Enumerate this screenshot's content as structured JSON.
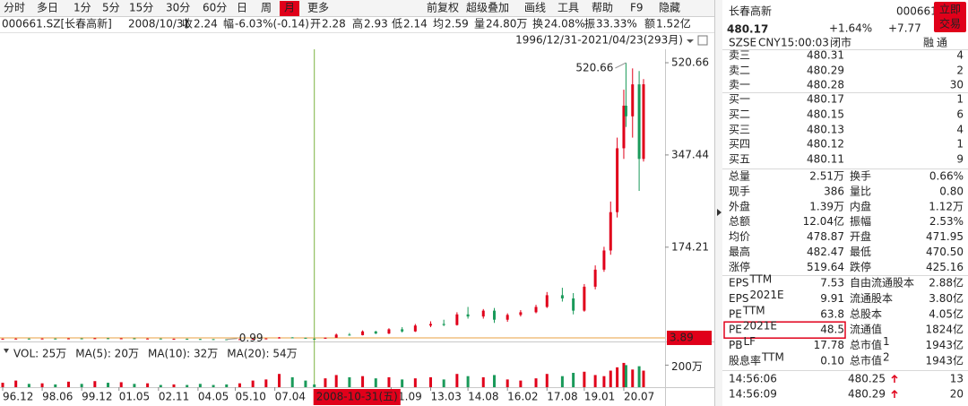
{
  "toolbar": {
    "periods": [
      "分时",
      "多日",
      "1分",
      "5分",
      "15分",
      "30分",
      "60分",
      "日",
      "周",
      "月",
      "更多"
    ],
    "active": "月",
    "tools": [
      "前复权",
      "超级叠加",
      "画线",
      "工具",
      "帮助",
      "F9",
      "隐藏"
    ]
  },
  "info_bar": {
    "symbol": "000661.SZ[长春高新]",
    "date": "2008/10/31",
    "items": [
      {
        "label": "收",
        "value": "2.24",
        "color": "#1a9a5a"
      },
      {
        "label": "幅",
        "value": "-6.03%(-0.14)",
        "color": "#1a9a5a"
      },
      {
        "label": "开",
        "value": "2.28",
        "color": "#1a9a5a"
      },
      {
        "label": "高",
        "value": "2.93",
        "color": "#e0001a"
      },
      {
        "label": "低",
        "value": "2.14",
        "color": "#1a9a5a"
      },
      {
        "label": "均",
        "value": "2.59",
        "color": "#e0001a"
      },
      {
        "label": "量",
        "value": "24.80万",
        "color": "#222222"
      },
      {
        "label": "换",
        "value": "24.08%",
        "color": "#222222"
      },
      {
        "label": "振",
        "value": "33.33%",
        "color": "#222222"
      },
      {
        "label": "额",
        "value": "1.52亿",
        "color": "#222222"
      }
    ]
  },
  "range_label": "1996/12/31-2021/04/23(293月)",
  "chart_data": {
    "type": "candlestick",
    "up_color": "#e0001a",
    "down_color": "#1a9a5a",
    "xlim": [
      "1996-12",
      "2021-04"
    ],
    "xticks": [
      {
        "value": "1996-12",
        "label": "96.12"
      },
      {
        "value": "1998-06",
        "label": "98.06"
      },
      {
        "value": "1999-12",
        "label": "99.12"
      },
      {
        "value": "2001-05",
        "label": "01.05"
      },
      {
        "value": "2002-11",
        "label": "02.11"
      },
      {
        "value": "2004-05",
        "label": "04.05"
      },
      {
        "value": "2005-10",
        "label": "05.10"
      },
      {
        "value": "2007-04",
        "label": "07.04"
      },
      {
        "value": "2011-09",
        "label": "11.09"
      },
      {
        "value": "2013-03",
        "label": "13.03"
      },
      {
        "value": "2014-08",
        "label": "14.08"
      },
      {
        "value": "2016-02",
        "label": "16.02"
      },
      {
        "value": "2017-08",
        "label": "17.08"
      },
      {
        "value": "2019-01",
        "label": "19.01"
      },
      {
        "value": "2020-07",
        "label": "20.07"
      }
    ],
    "ylim": [
      -1.2,
      545.9
    ],
    "yticks": [
      174.21,
      347.44,
      520.66
    ],
    "vlim": [
      0,
      260
    ],
    "vticks": [
      {
        "value": 200,
        "label": "200万"
      }
    ],
    "volume_legend": [
      {
        "text": "VOL: 25万",
        "color": "#333333"
      },
      {
        "text": "MA(5): 20万",
        "color": "#333333"
      },
      {
        "text": "MA(10): 32万",
        "color": "#d0209a"
      },
      {
        "text": "MA(20): 54万",
        "color": "#2a6ad8"
      }
    ],
    "annotations": [
      {
        "text": "520.66",
        "date": "2020-08",
        "value": 520.66
      },
      {
        "text": "0.99",
        "date": "2005-06",
        "value": 0.99
      }
    ],
    "cursor": {
      "date": "2008-10",
      "date_label": "2008-10-31(五)",
      "value": 3.89,
      "value_label": "3.89"
    },
    "candles": [
      {
        "date": "1996-12",
        "open": 2.0,
        "high": 2.6,
        "low": 1.8,
        "close": 2.3,
        "volume": 40
      },
      {
        "date": "1997-06",
        "open": 2.3,
        "high": 3.0,
        "low": 2.0,
        "close": 2.5,
        "volume": 60
      },
      {
        "date": "1997-12",
        "open": 2.5,
        "high": 2.8,
        "low": 2.0,
        "close": 2.2,
        "volume": 30
      },
      {
        "date": "1998-06",
        "open": 2.2,
        "high": 2.9,
        "low": 2.1,
        "close": 2.6,
        "volume": 35
      },
      {
        "date": "1998-12",
        "open": 2.6,
        "high": 2.7,
        "low": 1.9,
        "close": 2.1,
        "volume": 25
      },
      {
        "date": "1999-06",
        "open": 2.1,
        "high": 3.2,
        "low": 2.0,
        "close": 2.9,
        "volume": 50
      },
      {
        "date": "1999-12",
        "open": 2.9,
        "high": 3.1,
        "low": 2.2,
        "close": 2.4,
        "volume": 30
      },
      {
        "date": "2000-06",
        "open": 2.4,
        "high": 3.6,
        "low": 2.3,
        "close": 3.2,
        "volume": 55
      },
      {
        "date": "2000-12",
        "open": 3.2,
        "high": 3.4,
        "low": 2.6,
        "close": 2.8,
        "volume": 40
      },
      {
        "date": "2001-06",
        "open": 2.8,
        "high": 3.3,
        "low": 2.5,
        "close": 3.0,
        "volume": 45
      },
      {
        "date": "2001-12",
        "open": 3.0,
        "high": 3.1,
        "low": 2.2,
        "close": 2.4,
        "volume": 30
      },
      {
        "date": "2002-06",
        "open": 2.4,
        "high": 2.9,
        "low": 2.2,
        "close": 2.6,
        "volume": 35
      },
      {
        "date": "2002-12",
        "open": 2.6,
        "high": 2.7,
        "low": 1.9,
        "close": 2.0,
        "volume": 20
      },
      {
        "date": "2003-06",
        "open": 2.0,
        "high": 2.5,
        "low": 1.8,
        "close": 2.2,
        "volume": 25
      },
      {
        "date": "2003-12",
        "open": 2.2,
        "high": 2.4,
        "low": 1.6,
        "close": 1.7,
        "volume": 20
      },
      {
        "date": "2004-06",
        "open": 1.7,
        "high": 2.1,
        "low": 1.4,
        "close": 1.5,
        "volume": 30
      },
      {
        "date": "2004-12",
        "open": 1.5,
        "high": 1.6,
        "low": 1.1,
        "close": 1.2,
        "volume": 20
      },
      {
        "date": "2005-06",
        "open": 1.2,
        "high": 1.3,
        "low": 0.99,
        "close": 1.1,
        "volume": 25
      },
      {
        "date": "2005-12",
        "open": 1.1,
        "high": 1.6,
        "low": 1.0,
        "close": 1.5,
        "volume": 35
      },
      {
        "date": "2006-06",
        "open": 1.5,
        "high": 2.3,
        "low": 1.4,
        "close": 2.1,
        "volume": 60
      },
      {
        "date": "2006-12",
        "open": 2.1,
        "high": 3.0,
        "low": 2.0,
        "close": 2.8,
        "volume": 70
      },
      {
        "date": "2007-06",
        "open": 2.8,
        "high": 5.5,
        "low": 2.7,
        "close": 4.8,
        "volume": 120
      },
      {
        "date": "2007-12",
        "open": 4.8,
        "high": 5.2,
        "low": 3.8,
        "close": 4.0,
        "volume": 90
      },
      {
        "date": "2008-06",
        "open": 4.0,
        "high": 4.2,
        "low": 2.5,
        "close": 2.7,
        "volume": 60
      },
      {
        "date": "2008-10",
        "open": 2.28,
        "high": 2.93,
        "low": 2.14,
        "close": 2.24,
        "volume": 24.8
      },
      {
        "date": "2009-03",
        "open": 2.3,
        "high": 4.5,
        "low": 2.2,
        "close": 4.2,
        "volume": 80
      },
      {
        "date": "2009-08",
        "open": 4.2,
        "high": 12,
        "low": 4.0,
        "close": 10,
        "volume": 110
      },
      {
        "date": "2010-02",
        "open": 10,
        "high": 13,
        "low": 8,
        "close": 9,
        "volume": 90
      },
      {
        "date": "2010-08",
        "open": 9,
        "high": 18,
        "low": 8.5,
        "close": 16,
        "volume": 100
      },
      {
        "date": "2011-02",
        "open": 16,
        "high": 17,
        "low": 11,
        "close": 12,
        "volume": 80
      },
      {
        "date": "2011-08",
        "open": 12,
        "high": 22,
        "low": 11,
        "close": 20,
        "volume": 90
      },
      {
        "date": "2012-02",
        "open": 20,
        "high": 24,
        "low": 14,
        "close": 16,
        "volume": 70
      },
      {
        "date": "2012-08",
        "open": 16,
        "high": 30,
        "low": 15,
        "close": 27,
        "volume": 80
      },
      {
        "date": "2013-03",
        "open": 27,
        "high": 35,
        "low": 24,
        "close": 30,
        "volume": 90
      },
      {
        "date": "2013-09",
        "open": 30,
        "high": 38,
        "low": 26,
        "close": 28,
        "volume": 70
      },
      {
        "date": "2014-03",
        "open": 28,
        "high": 52,
        "low": 27,
        "close": 48,
        "volume": 120
      },
      {
        "date": "2014-08",
        "open": 48,
        "high": 62,
        "low": 40,
        "close": 44,
        "volume": 100
      },
      {
        "date": "2015-03",
        "open": 44,
        "high": 58,
        "low": 40,
        "close": 55,
        "volume": 90
      },
      {
        "date": "2015-08",
        "open": 55,
        "high": 60,
        "low": 32,
        "close": 38,
        "volume": 110
      },
      {
        "date": "2016-02",
        "open": 38,
        "high": 50,
        "low": 34,
        "close": 47,
        "volume": 70
      },
      {
        "date": "2016-08",
        "open": 47,
        "high": 56,
        "low": 44,
        "close": 52,
        "volume": 60
      },
      {
        "date": "2017-03",
        "open": 52,
        "high": 66,
        "low": 50,
        "close": 62,
        "volume": 80
      },
      {
        "date": "2017-08",
        "open": 62,
        "high": 90,
        "low": 60,
        "close": 84,
        "volume": 120
      },
      {
        "date": "2018-03",
        "open": 84,
        "high": 98,
        "low": 72,
        "close": 78,
        "volume": 100
      },
      {
        "date": "2018-08",
        "open": 78,
        "high": 88,
        "low": 48,
        "close": 55,
        "volume": 130
      },
      {
        "date": "2019-01",
        "open": 55,
        "high": 105,
        "low": 53,
        "close": 100,
        "volume": 140
      },
      {
        "date": "2019-06",
        "open": 100,
        "high": 140,
        "low": 95,
        "close": 132,
        "volume": 110
      },
      {
        "date": "2019-10",
        "open": 132,
        "high": 175,
        "low": 128,
        "close": 168,
        "volume": 100
      },
      {
        "date": "2020-01",
        "open": 168,
        "high": 260,
        "low": 160,
        "close": 240,
        "volume": 150
      },
      {
        "date": "2020-04",
        "open": 240,
        "high": 380,
        "low": 230,
        "close": 360,
        "volume": 180
      },
      {
        "date": "2020-07",
        "open": 360,
        "high": 470,
        "low": 340,
        "close": 440,
        "volume": 220
      },
      {
        "date": "2020-08",
        "open": 440,
        "high": 520.66,
        "low": 400,
        "close": 420,
        "volume": 200
      },
      {
        "date": "2020-11",
        "open": 420,
        "high": 510,
        "low": 380,
        "close": 480,
        "volume": 160
      },
      {
        "date": "2021-02",
        "open": 480,
        "high": 505,
        "low": 280,
        "close": 340,
        "volume": 190
      },
      {
        "date": "2021-04",
        "open": 340,
        "high": 490,
        "low": 335,
        "close": 480.17,
        "volume": 150
      }
    ]
  },
  "quote": {
    "name": "长春高新",
    "code": "000661",
    "trade_button": [
      "立即",
      "交易"
    ],
    "price": "480.17",
    "change_pct": "+1.64%",
    "change": "+7.77",
    "status": [
      "SZSE",
      "CNY",
      "15:00:03",
      "闭市"
    ],
    "badges": [
      "融",
      "通"
    ]
  },
  "order_book": [
    {
      "label": "卖三",
      "price": "480.31",
      "qty": "4"
    },
    {
      "label": "卖二",
      "price": "480.29",
      "qty": "2"
    },
    {
      "label": "卖一",
      "price": "480.28",
      "qty": "30"
    },
    {
      "label": "买一",
      "price": "480.17",
      "qty": "1"
    },
    {
      "label": "买二",
      "price": "480.15",
      "qty": "6"
    },
    {
      "label": "买三",
      "price": "480.13",
      "qty": "4"
    },
    {
      "label": "买四",
      "price": "480.12",
      "qty": "1"
    },
    {
      "label": "买五",
      "price": "480.11",
      "qty": "9"
    }
  ],
  "stats": [
    {
      "label": "总量",
      "value": "2.51万",
      "color": "#222222",
      "label2": "换手",
      "value2": "0.66%",
      "color2": "#222222"
    },
    {
      "label": "现手",
      "value": "386",
      "color": "#222222",
      "label2": "量比",
      "value2": "0.80",
      "color2": "#222222"
    },
    {
      "label": "外盘",
      "value": "1.39万",
      "color": "#e0001a",
      "label2": "内盘",
      "value2": "1.12万",
      "color2": "#1a9a5a"
    },
    {
      "label": "总额",
      "value": "12.04亿",
      "color": "#222222",
      "label2": "振幅",
      "value2": "2.53%",
      "color2": "#222222"
    },
    {
      "label": "均价",
      "value": "478.87",
      "color": "#e0001a",
      "label2": "开盘",
      "value2": "471.95",
      "color2": "#1a9a5a"
    },
    {
      "label": "最高",
      "value": "482.47",
      "color": "#e0001a",
      "label2": "最低",
      "value2": "470.50",
      "color2": "#1a9a5a"
    },
    {
      "label": "涨停",
      "value": "519.64",
      "color": "#e0001a",
      "label2": "跌停",
      "value2": "425.16",
      "color2": "#1a9a5a"
    }
  ],
  "fundamentals": [
    {
      "label": "EPS",
      "sup": "TTM",
      "value": "7.53",
      "label2": "自由流通股本",
      "value2": "2.88亿"
    },
    {
      "label": "EPS",
      "sup": "2021E",
      "value": "9.91",
      "label2": "流通股本",
      "value2": "3.80亿"
    },
    {
      "label": "PE",
      "sup": "TTM",
      "value": "63.8",
      "label2": "总股本",
      "value2": "4.05亿"
    },
    {
      "label": "PE",
      "sup": "2021E",
      "value": "48.5",
      "label2": "流通值",
      "value2": "1824亿",
      "highlight": true
    },
    {
      "label": "PB",
      "sup": "LF",
      "value": "17.78",
      "label2": "总市值",
      "sup2": "1",
      "value2": "1943亿"
    },
    {
      "label": "股息率",
      "sup": "TTM",
      "value": "0.10",
      "label2": "总市值",
      "sup2": "2",
      "value2": "1943亿"
    }
  ],
  "trades": [
    {
      "time": "14:56:06",
      "price": "480.25",
      "qty": "13"
    },
    {
      "time": "14:56:09",
      "price": "480.29",
      "qty": "20"
    }
  ]
}
